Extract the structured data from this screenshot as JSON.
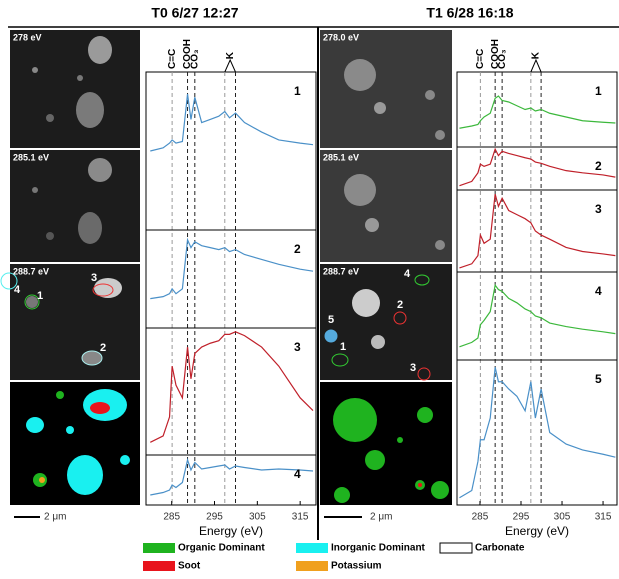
{
  "chart_data": [
    {
      "type": "line",
      "title": "T0 6/27 12:27",
      "xlabel": "Energy (eV)",
      "xlim": [
        279,
        318.7
      ],
      "xticks": [
        285,
        295,
        305,
        315
      ],
      "ylim": [
        0,
        1
      ],
      "reference_lines": [
        {
          "value": 285.1,
          "label": "C=C"
        },
        {
          "value": 288.7,
          "label": "COOH"
        },
        {
          "value": 290.4,
          "label": "CO₃"
        },
        {
          "values": [
            297.4,
            299.9
          ],
          "label": "K"
        }
      ],
      "x": [
        280,
        283,
        284.5,
        285.1,
        286,
        287.5,
        288.7,
        289.5,
        290.4,
        292,
        294,
        296,
        297.4,
        298.5,
        299.9,
        302,
        306,
        310,
        315,
        318
      ],
      "series": [
        {
          "name": "1",
          "color": "#4a90c8",
          "values": [
            0.5,
            0.52,
            0.55,
            0.57,
            0.55,
            0.56,
            0.86,
            0.7,
            0.84,
            0.68,
            0.7,
            0.72,
            0.75,
            0.71,
            0.74,
            0.68,
            0.62,
            0.57,
            0.55,
            0.54
          ]
        },
        {
          "name": "2",
          "color": "#4a90c8",
          "values": [
            0.3,
            0.32,
            0.35,
            0.4,
            0.35,
            0.4,
            0.9,
            0.82,
            0.88,
            0.84,
            0.82,
            0.8,
            0.82,
            0.78,
            0.8,
            0.75,
            0.7,
            0.65,
            0.6,
            0.58
          ]
        },
        {
          "name": "3",
          "color": "#c0202a",
          "values": [
            0.1,
            0.15,
            0.3,
            0.7,
            0.55,
            0.45,
            0.85,
            0.6,
            0.8,
            0.85,
            0.88,
            0.9,
            0.95,
            0.95,
            0.97,
            0.94,
            0.85,
            0.7,
            0.45,
            0.35
          ]
        },
        {
          "name": "4",
          "color": "#4a90c8",
          "values": [
            0.2,
            0.25,
            0.3,
            0.4,
            0.35,
            0.45,
            0.9,
            0.7,
            0.85,
            0.72,
            0.75,
            0.78,
            0.8,
            0.72,
            0.78,
            0.75,
            0.7,
            0.72,
            0.7,
            0.68
          ]
        }
      ]
    },
    {
      "type": "line",
      "title": "T1 6/28 16:18",
      "xlabel": "Energy (eV)",
      "xlim": [
        279.4,
        318.4
      ],
      "xticks": [
        285,
        295,
        305,
        315
      ],
      "ylim": [
        0,
        1
      ],
      "reference_lines": [
        {
          "value": 285.1,
          "label": "C=C"
        },
        {
          "value": 288.7,
          "label": "COOH"
        },
        {
          "value": 290.4,
          "label": "CO₃"
        },
        {
          "values": [
            297.4,
            299.9
          ],
          "label": "K"
        }
      ],
      "x": [
        280,
        283,
        284.5,
        285.1,
        286,
        287.5,
        288.7,
        289.5,
        290.4,
        292,
        294,
        296,
        297.4,
        298.5,
        299.9,
        302,
        306,
        310,
        315,
        318
      ],
      "series": [
        {
          "name": "1",
          "color": "#3cb83c",
          "values": [
            0.25,
            0.28,
            0.3,
            0.35,
            0.4,
            0.45,
            0.65,
            0.68,
            0.62,
            0.6,
            0.55,
            0.5,
            0.52,
            0.48,
            0.5,
            0.45,
            0.4,
            0.35,
            0.33,
            0.32
          ]
        },
        {
          "name": "2",
          "color": "#c0202a",
          "values": [
            0.1,
            0.2,
            0.4,
            0.6,
            0.55,
            0.6,
            0.95,
            0.8,
            0.9,
            0.85,
            0.8,
            0.75,
            0.72,
            0.65,
            0.62,
            0.55,
            0.45,
            0.4,
            0.35,
            0.3
          ]
        },
        {
          "name": "3",
          "color": "#c0202a",
          "values": [
            0.05,
            0.1,
            0.2,
            0.45,
            0.35,
            0.4,
            0.95,
            0.8,
            0.9,
            0.75,
            0.7,
            0.65,
            0.6,
            0.5,
            0.45,
            0.4,
            0.3,
            0.25,
            0.22,
            0.2
          ]
        },
        {
          "name": "4",
          "color": "#3cb83c",
          "values": [
            0.15,
            0.2,
            0.25,
            0.4,
            0.45,
            0.55,
            0.85,
            0.8,
            0.78,
            0.7,
            0.65,
            0.58,
            0.55,
            0.5,
            0.48,
            0.42,
            0.38,
            0.35,
            0.32,
            0.3
          ]
        },
        {
          "name": "5",
          "color": "#4a90c8",
          "values": [
            0.05,
            0.1,
            0.3,
            0.45,
            0.45,
            0.6,
            0.95,
            0.85,
            0.85,
            0.8,
            0.75,
            0.65,
            0.85,
            0.6,
            0.8,
            0.5,
            0.42,
            0.38,
            0.35,
            0.33
          ]
        }
      ]
    }
  ],
  "figure": {
    "T0": {
      "images": [
        "278 eV",
        "285.1 eV",
        "288.7 eV"
      ],
      "particles": [
        "1",
        "2",
        "3",
        "4"
      ],
      "scale_bar": "2 μm"
    },
    "T1": {
      "images": [
        "278.0 eV",
        "285.1 eV",
        "288.7 eV"
      ],
      "particles": [
        "1",
        "2",
        "3",
        "4",
        "5"
      ],
      "scale_bar": "2 μm"
    },
    "legend": [
      {
        "label": "Organic Dominant",
        "color": "#1fb31f"
      },
      {
        "label": "Inorganic Dominant",
        "color": "#19f0f0"
      },
      {
        "label": "Carbonate",
        "color": "#ffffff"
      },
      {
        "label": "Soot",
        "color": "#e8141c"
      },
      {
        "label": "Potassium",
        "color": "#f0a01e"
      }
    ]
  }
}
